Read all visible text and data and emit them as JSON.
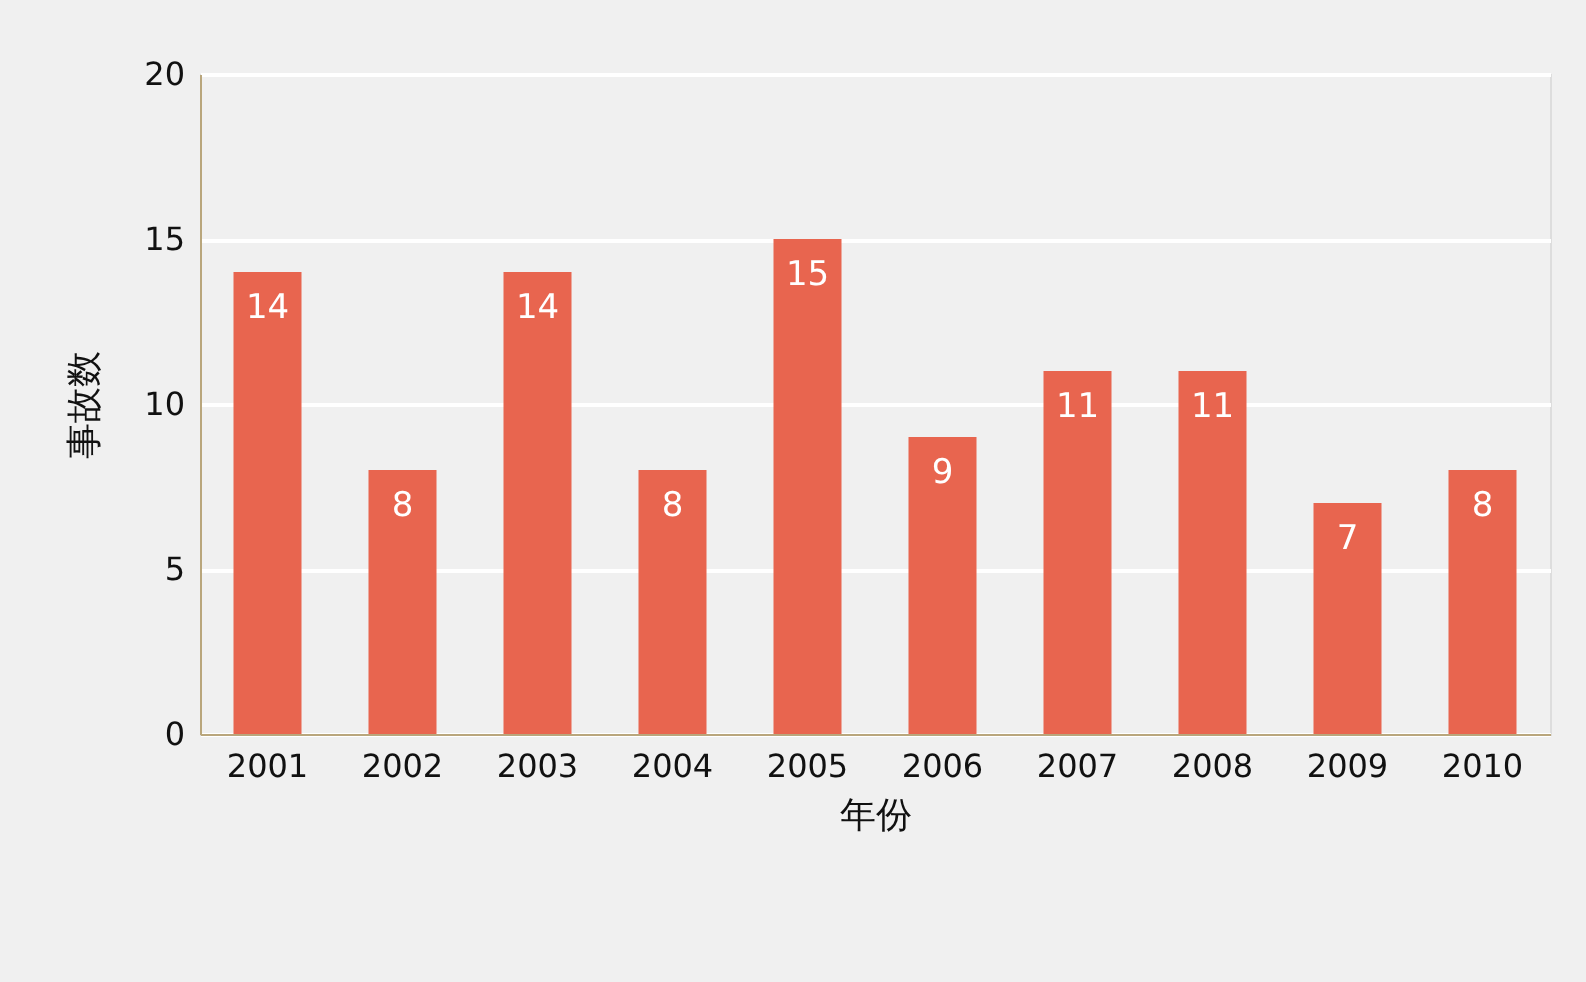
{
  "chart_data": {
    "type": "bar",
    "xlabel": "年份",
    "ylabel": "事故数",
    "categories": [
      "2001",
      "2002",
      "2003",
      "2004",
      "2005",
      "2006",
      "2007",
      "2008",
      "2009",
      "2010"
    ],
    "values": [
      14,
      8,
      14,
      8,
      15,
      9,
      11,
      11,
      7,
      8
    ],
    "color": "#e8654f",
    "ylim": [
      0,
      20
    ],
    "yticks": [
      0,
      5,
      10,
      15,
      20
    ],
    "grid": "y",
    "data_labels": true
  }
}
